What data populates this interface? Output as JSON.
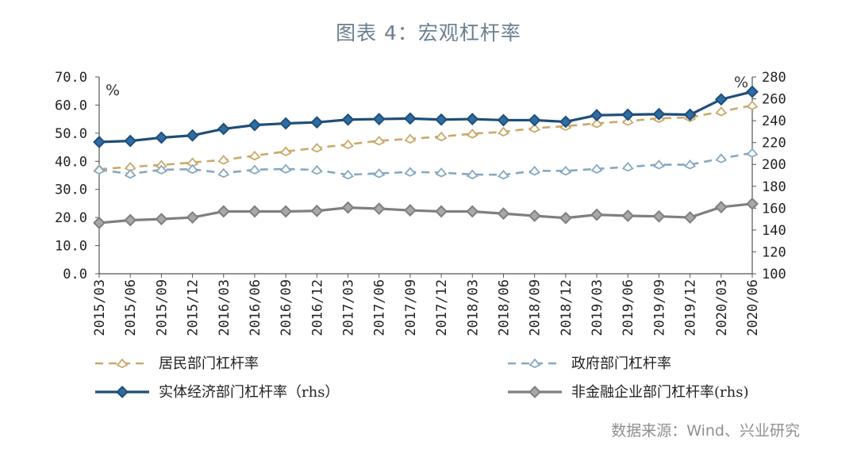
{
  "title": "图表 4：宏观杠杆率",
  "source": "数据来源：Wind、兴业研究",
  "chart_data": {
    "type": "line",
    "x": [
      "2015/03",
      "2015/06",
      "2015/09",
      "2015/12",
      "2016/03",
      "2016/06",
      "2016/09",
      "2016/12",
      "2017/03",
      "2017/06",
      "2017/09",
      "2017/12",
      "2018/03",
      "2018/06",
      "2018/09",
      "2018/12",
      "2019/03",
      "2019/06",
      "2019/09",
      "2019/12",
      "2020/03",
      "2020/06"
    ],
    "y_left": {
      "ylim": [
        0,
        70
      ],
      "ticks": [
        "0.0",
        "10.0",
        "20.0",
        "30.0",
        "40.0",
        "50.0",
        "60.0",
        "70.0"
      ],
      "unit": "%"
    },
    "y_right": {
      "ylim": [
        100,
        280
      ],
      "ticks": [
        "100",
        "120",
        "140",
        "160",
        "180",
        "200",
        "220",
        "240",
        "260",
        "280"
      ],
      "unit": "%"
    },
    "grid": false,
    "legend_position": "bottom",
    "series": [
      {
        "name": "居民部门杠杆率",
        "axis": "left",
        "style": "dashed",
        "color": "#c9a96a",
        "values": [
          37.2,
          38.0,
          38.7,
          39.6,
          40.5,
          42.0,
          43.5,
          44.8,
          46.0,
          47.3,
          48.0,
          48.8,
          49.8,
          50.5,
          51.8,
          52.5,
          53.5,
          54.3,
          55.3,
          55.6,
          57.7,
          59.9
        ]
      },
      {
        "name": "政府部门杠杆率",
        "axis": "left",
        "style": "dashed",
        "color": "#86a8bf",
        "values": [
          37.0,
          35.5,
          37.0,
          37.2,
          35.8,
          37.0,
          37.3,
          36.9,
          35.2,
          35.7,
          36.2,
          36.0,
          35.3,
          35.2,
          36.6,
          36.6,
          37.3,
          38.0,
          38.8,
          38.8,
          41.0,
          43.0
        ]
      },
      {
        "name": "实体经济部门杠杆率（rhs）",
        "axis": "right",
        "style": "solid",
        "color": "#1f4e79",
        "values": [
          220.5,
          221.5,
          224.5,
          226.5,
          232.5,
          236.0,
          237.5,
          238.5,
          241.0,
          241.5,
          242.0,
          241.0,
          241.5,
          240.5,
          240.5,
          239.0,
          245.0,
          245.5,
          246.0,
          245.5,
          259.5,
          266.5
        ]
      },
      {
        "name": "非金融企业部门杠杆率(rhs)",
        "axis": "right",
        "style": "solid",
        "color": "#7f7f7f",
        "values": [
          146.5,
          149.0,
          150.0,
          151.5,
          157.0,
          157.0,
          157.0,
          157.5,
          160.5,
          159.5,
          158.0,
          157.0,
          157.0,
          155.0,
          153.0,
          151.0,
          154.0,
          153.0,
          152.5,
          151.5,
          161.0,
          164.0
        ]
      }
    ]
  }
}
